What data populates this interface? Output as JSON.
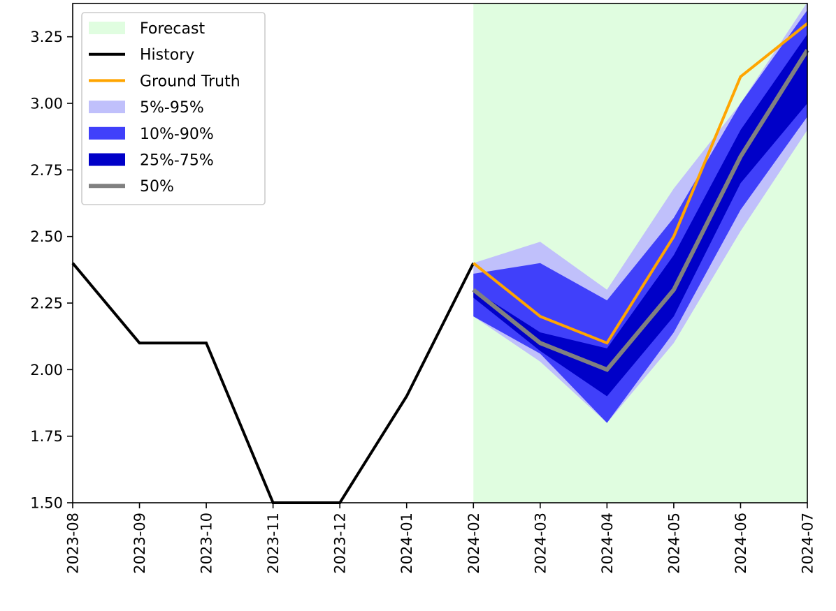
{
  "chart_data": {
    "type": "line",
    "title": "",
    "xlabel": "",
    "ylabel": "",
    "ylim": [
      1.5,
      3.375
    ],
    "grid": false,
    "legend_position": "top-left",
    "categories": [
      "2023-08",
      "2023-09",
      "2023-10",
      "2023-11",
      "2023-12",
      "2024-01",
      "2024-02",
      "2024-03",
      "2024-04",
      "2024-05",
      "2024-06",
      "2024-07"
    ],
    "y_ticks": [
      1.5,
      1.75,
      2.0,
      2.25,
      2.5,
      2.75,
      3.0,
      3.25
    ],
    "y_tick_labels": [
      "1.50",
      "1.75",
      "2.00",
      "2.25",
      "2.50",
      "2.75",
      "3.00",
      "3.25"
    ],
    "forecast_region": {
      "start": "2024-02",
      "end": "2024-07",
      "label": "Forecast",
      "color": "#e0fde0"
    },
    "history": {
      "name": "History",
      "color": "#000000",
      "x": [
        "2023-08",
        "2023-09",
        "2023-10",
        "2023-11",
        "2023-12",
        "2024-01",
        "2024-02"
      ],
      "values": [
        2.4,
        2.1,
        2.1,
        1.5,
        1.5,
        1.9,
        2.4
      ]
    },
    "ground_truth": {
      "name": "Ground Truth",
      "color": "#ffa500",
      "x": [
        "2024-02",
        "2024-03",
        "2024-04",
        "2024-05",
        "2024-06",
        "2024-07"
      ],
      "values": [
        2.4,
        2.2,
        2.1,
        2.5,
        3.1,
        3.3
      ]
    },
    "bands": [
      {
        "name": "5%-95%",
        "color": "#c0c0fb",
        "x": [
          "2024-02",
          "2024-03",
          "2024-04",
          "2024-05",
          "2024-06",
          "2024-07"
        ],
        "lower": [
          2.2,
          2.03,
          1.8,
          2.1,
          2.52,
          2.9
        ],
        "upper": [
          2.4,
          2.48,
          2.3,
          2.68,
          3.0,
          3.38
        ]
      },
      {
        "name": "10%-90%",
        "color": "#4040fa",
        "x": [
          "2024-02",
          "2024-03",
          "2024-04",
          "2024-05",
          "2024-06",
          "2024-07"
        ],
        "lower": [
          2.2,
          2.06,
          1.8,
          2.14,
          2.6,
          2.95
        ],
        "upper": [
          2.36,
          2.4,
          2.26,
          2.57,
          3.0,
          3.35
        ]
      },
      {
        "name": "25%-75%",
        "color": "#0000c8",
        "x": [
          "2024-02",
          "2024-03",
          "2024-04",
          "2024-05",
          "2024-06",
          "2024-07"
        ],
        "lower": [
          2.27,
          2.07,
          1.9,
          2.2,
          2.7,
          3.0
        ],
        "upper": [
          2.3,
          2.14,
          2.08,
          2.43,
          2.9,
          3.26
        ]
      }
    ],
    "median": {
      "name": "50%",
      "color": "#808080",
      "x": [
        "2024-02",
        "2024-03",
        "2024-04",
        "2024-05",
        "2024-06",
        "2024-07"
      ],
      "values": [
        2.3,
        2.1,
        2.0,
        2.3,
        2.8,
        3.2
      ]
    },
    "legend": [
      "Forecast",
      "History",
      "Ground Truth",
      "5%-95%",
      "10%-90%",
      "25%-75%",
      "50%"
    ]
  }
}
